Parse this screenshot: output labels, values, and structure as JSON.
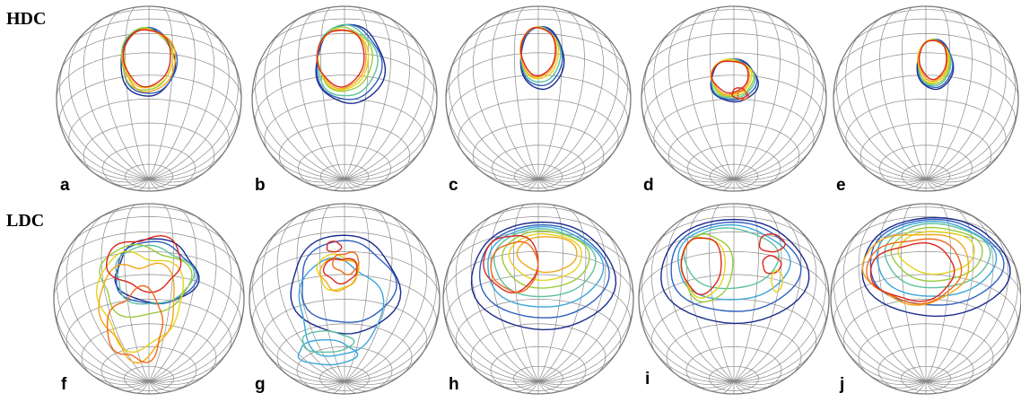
{
  "row_labels": [
    "HDC",
    "LDC"
  ],
  "panel_labels": [
    "a",
    "b",
    "c",
    "d",
    "e",
    "f",
    "g",
    "h",
    "i",
    "j"
  ],
  "colors": {
    "grid": "#8a8a8a",
    "outline": "#7a7a7a",
    "curves": [
      "#1a2a8c",
      "#2f5fc0",
      "#3aa6d9",
      "#5dc0a0",
      "#9acb3c",
      "#e6d21e",
      "#f2a71b",
      "#ef6a1a",
      "#d9281e"
    ]
  },
  "sphere_grid": {
    "latitude_lines": 12,
    "longitude_lines": 24
  }
}
